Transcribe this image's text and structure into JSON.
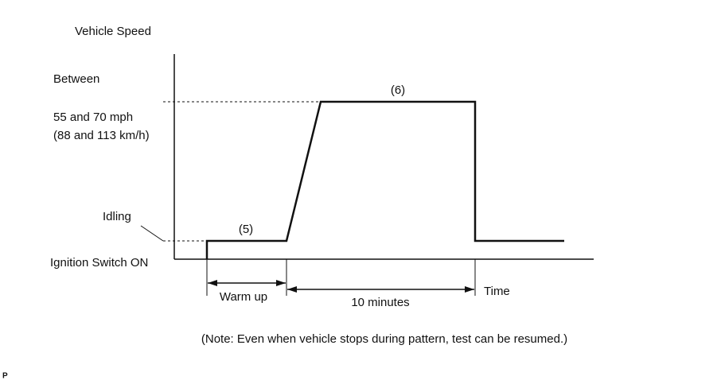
{
  "axis": {
    "y_title": "Vehicle Speed",
    "x_title": "Time"
  },
  "levels": {
    "between": "Between",
    "high_mph": "55 and 70 mph",
    "high_kmh": "(88 and 113 km/h)",
    "idling": "Idling",
    "ignition": "Ignition Switch ON"
  },
  "steps": {
    "step5": "(5)",
    "step6": "(6)"
  },
  "durations": {
    "warm_up": "Warm up",
    "ten_minutes": "10 minutes"
  },
  "note": "(Note: Even when vehicle stops during pattern, test can be resumed.)",
  "corner_mark": "P"
}
